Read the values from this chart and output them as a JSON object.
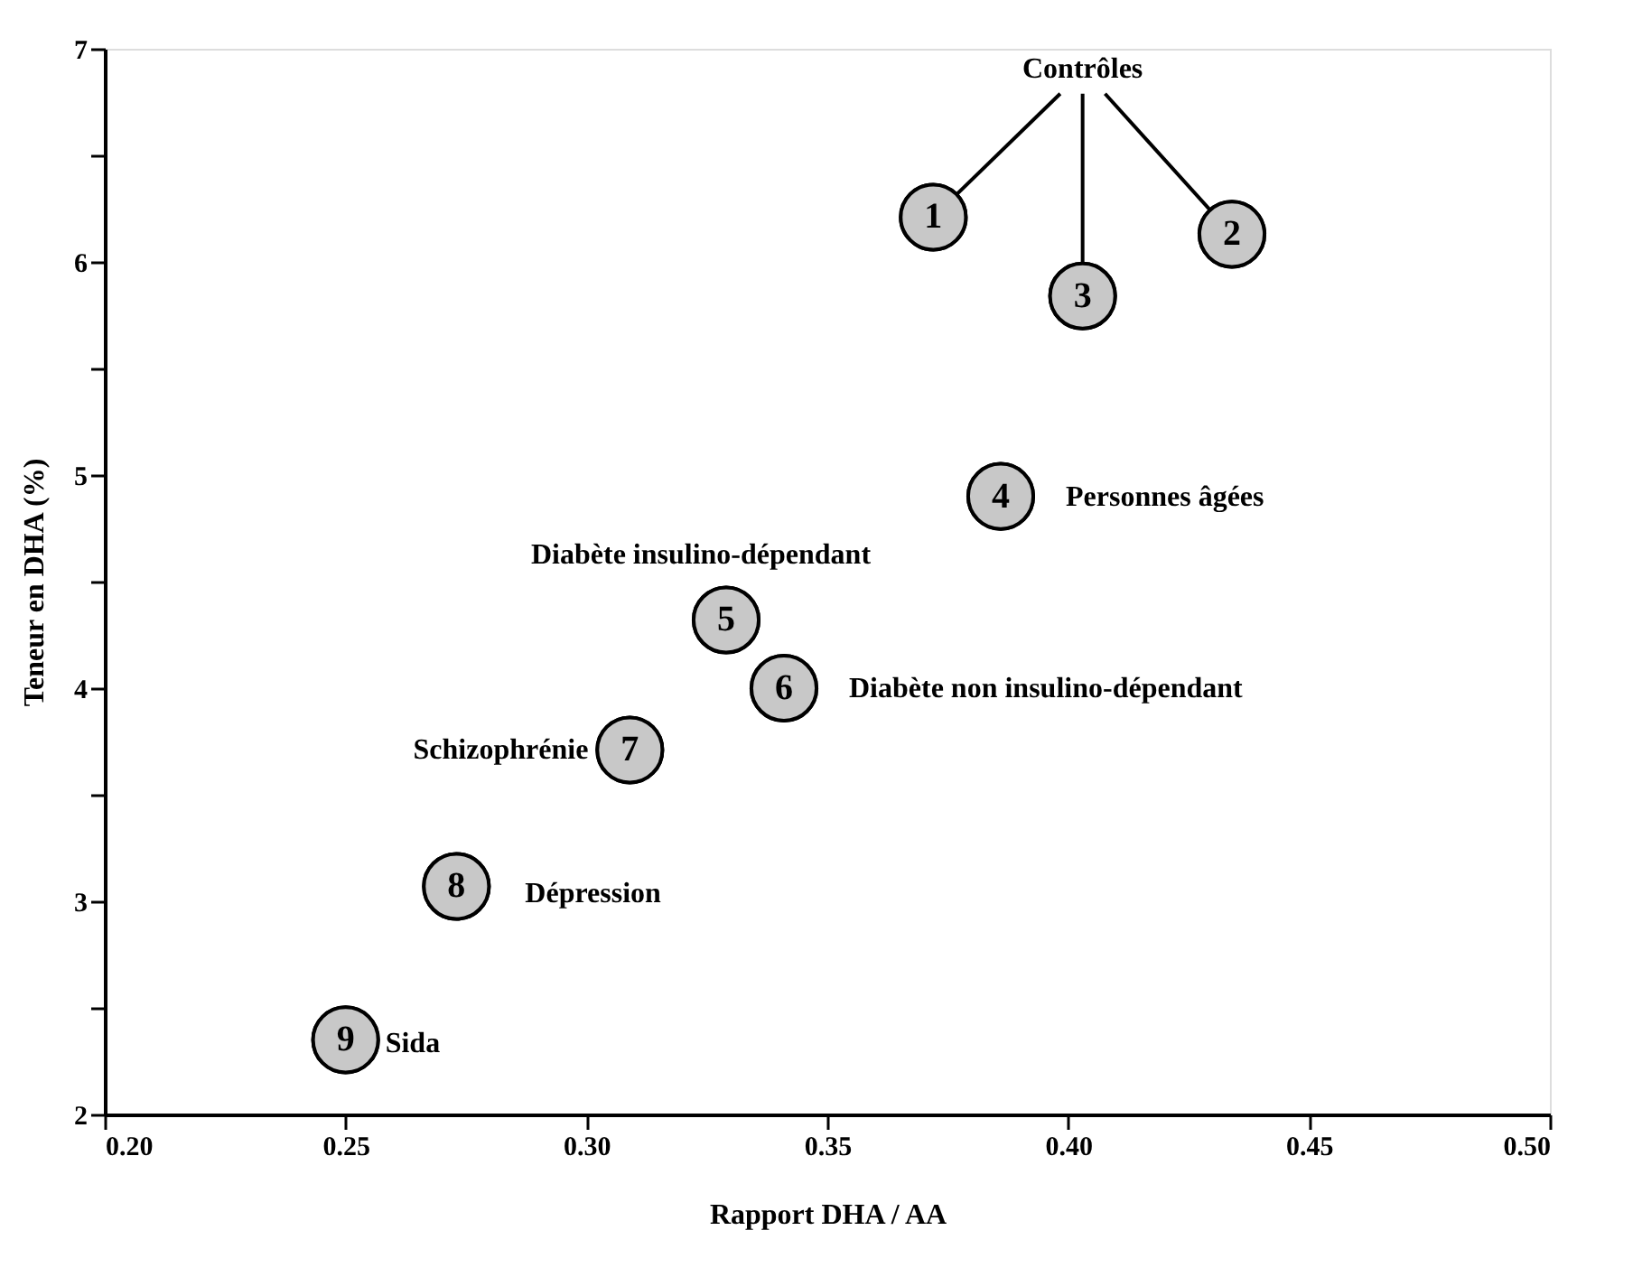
{
  "chart_data": {
    "type": "scatter",
    "xlabel": "Rapport DHA / AA",
    "ylabel": "Teneur en DHA (%)",
    "x": [
      0.372,
      0.434,
      0.403,
      0.386,
      0.329,
      0.341,
      0.309,
      0.273,
      0.25
    ],
    "values": [
      6.21,
      6.13,
      5.84,
      4.9,
      4.32,
      4.0,
      3.71,
      3.07,
      2.35
    ],
    "color": "#c8c8c8",
    "marker": "circle",
    "grid": false,
    "legend": false,
    "xlim": [
      0.2,
      0.5
    ],
    "ylim": [
      2,
      7
    ],
    "xticks": [
      {
        "value": 0.2,
        "label": "0.20"
      },
      {
        "value": 0.25,
        "label": "0.25"
      },
      {
        "value": 0.3,
        "label": "0.30"
      },
      {
        "value": 0.35,
        "label": "0.35"
      },
      {
        "value": 0.4,
        "label": "0.40"
      },
      {
        "value": 0.45,
        "label": "0.45"
      },
      {
        "value": 0.5,
        "label": "0.50"
      }
    ],
    "yticks": [
      2,
      {
        "value": 2.5,
        "label": null
      },
      3,
      {
        "value": 3.5,
        "label": null
      },
      4,
      {
        "value": 4.5,
        "label": null
      },
      5,
      {
        "value": 5.5,
        "label": null
      },
      6,
      {
        "value": 6.5,
        "label": null
      },
      7
    ],
    "annotations": [
      {
        "text": "1",
        "x": 0.372,
        "y": 6.21
      },
      {
        "text": "2",
        "x": 0.434,
        "y": 6.13
      },
      {
        "text": "3",
        "x": 0.403,
        "y": 5.84
      },
      {
        "text": "4",
        "x": 0.386,
        "y": 4.9
      },
      {
        "text": "5",
        "x": 0.329,
        "y": 4.32
      },
      {
        "text": "6",
        "x": 0.341,
        "y": 4.0
      },
      {
        "text": "7",
        "x": 0.309,
        "y": 3.71
      },
      {
        "text": "8",
        "x": 0.273,
        "y": 3.07
      },
      {
        "text": "9",
        "x": 0.25,
        "y": 2.35
      },
      {
        "text": "Contrôles",
        "x": 0.403,
        "y": 5.84
      },
      {
        "text": "Personnes âgées",
        "x": 0.386,
        "y": 4.9
      },
      {
        "text": "Diabète insulino-dépendant",
        "x": 0.329,
        "y": 4.32
      },
      {
        "text": "Diabète non insulino-dépendant",
        "x": 0.341,
        "y": 4.0
      },
      {
        "text": "Schizophrénie",
        "x": 0.309,
        "y": 3.71
      },
      {
        "text": "Dépression",
        "x": 0.273,
        "y": 3.07
      },
      {
        "text": "Sida",
        "x": 0.25,
        "y": 2.35
      }
    ]
  }
}
